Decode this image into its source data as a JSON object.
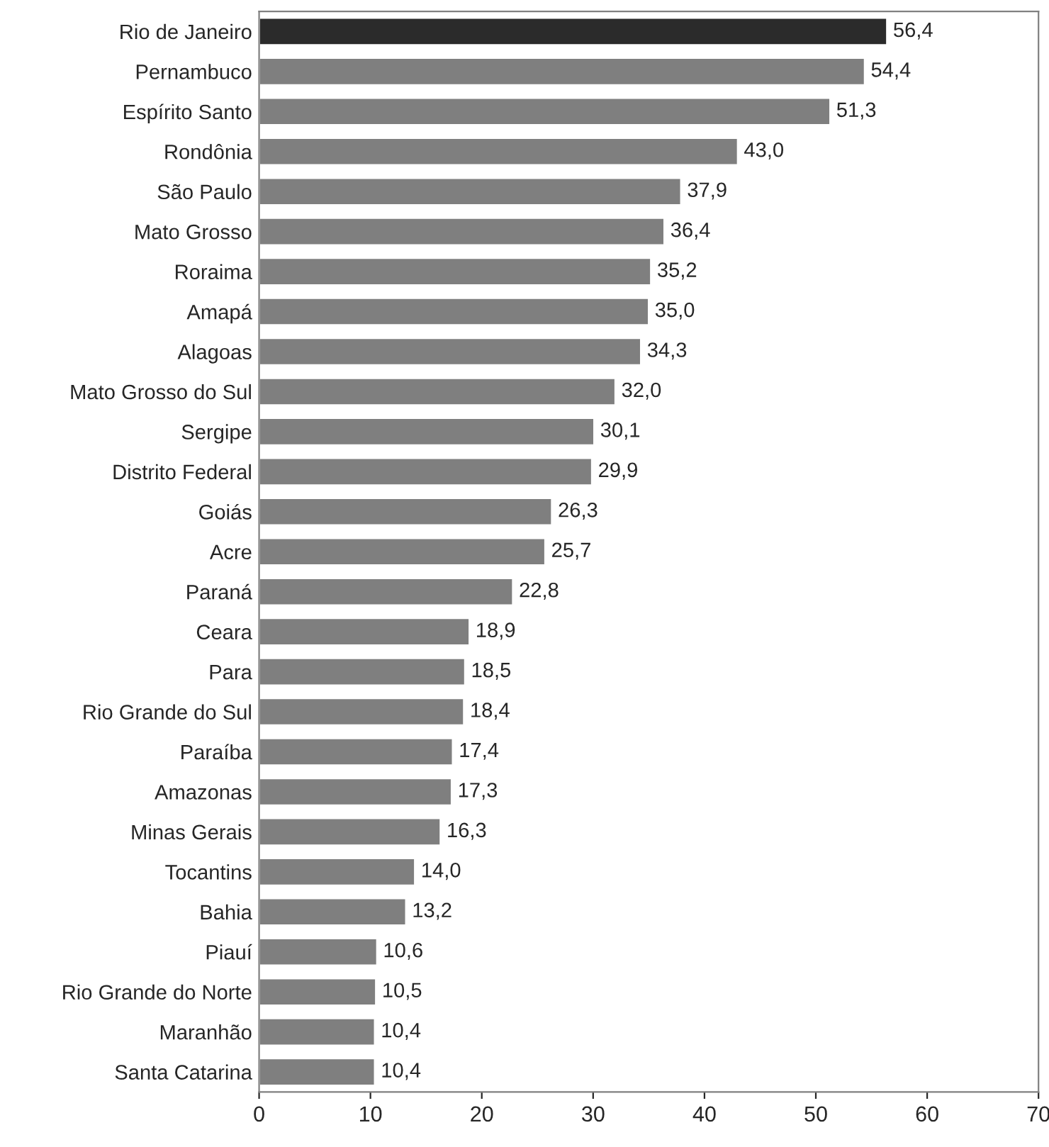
{
  "chart_data": {
    "type": "bar",
    "orientation": "horizontal",
    "categories": [
      "Rio de Janeiro",
      "Pernambuco",
      "Espírito Santo",
      "Rondônia",
      "São Paulo",
      "Mato Grosso",
      "Roraima",
      "Amapá",
      "Alagoas",
      "Mato Grosso do Sul",
      "Sergipe",
      "Distrito Federal",
      "Goiás",
      "Acre",
      "Paraná",
      "Ceara",
      "Para",
      "Rio Grande do Sul",
      "Paraíba",
      "Amazonas",
      "Minas Gerais",
      "Tocantins",
      "Bahia",
      "Piauí",
      "Rio Grande do Norte",
      "Maranhão",
      "Santa Catarina"
    ],
    "values": [
      56.4,
      54.4,
      51.3,
      43.0,
      37.9,
      36.4,
      35.2,
      35.0,
      34.3,
      32.0,
      30.1,
      29.9,
      26.3,
      25.7,
      22.8,
      18.9,
      18.5,
      18.4,
      17.4,
      17.3,
      16.3,
      14.0,
      13.2,
      10.6,
      10.5,
      10.4,
      10.4
    ],
    "value_labels": [
      "56,4",
      "54,4",
      "51,3",
      "43,0",
      "37,9",
      "36,4",
      "35,2",
      "35,0",
      "34,3",
      "32,0",
      "30,1",
      "29,9",
      "26,3",
      "25,7",
      "22,8",
      "18,9",
      "18,5",
      "18,4",
      "17,4",
      "17,3",
      "16,3",
      "14,0",
      "13,2",
      "10,6",
      "10,5",
      "10,4",
      "10,4"
    ],
    "colors": [
      "#2b2b2b",
      "#7f7f7f",
      "#7f7f7f",
      "#7f7f7f",
      "#7f7f7f",
      "#7f7f7f",
      "#7f7f7f",
      "#7f7f7f",
      "#7f7f7f",
      "#7f7f7f",
      "#7f7f7f",
      "#7f7f7f",
      "#7f7f7f",
      "#7f7f7f",
      "#7f7f7f",
      "#7f7f7f",
      "#7f7f7f",
      "#7f7f7f",
      "#7f7f7f",
      "#7f7f7f",
      "#7f7f7f",
      "#7f7f7f",
      "#7f7f7f",
      "#7f7f7f",
      "#7f7f7f",
      "#7f7f7f",
      "#7f7f7f"
    ],
    "xlim": [
      0,
      70
    ],
    "xticks": [
      0,
      10,
      20,
      30,
      40,
      50,
      60,
      70
    ],
    "grid": false,
    "legend": false
  }
}
